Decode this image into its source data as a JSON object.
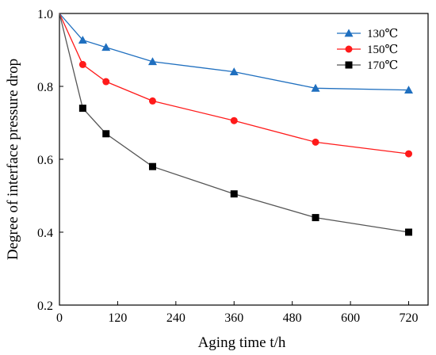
{
  "chart_data": {
    "type": "line",
    "xlabel": "Aging time t/h",
    "ylabel": "Degree of interface pressure drop",
    "xlim": [
      0,
      760
    ],
    "ylim": [
      0.2,
      1.0
    ],
    "xticks": [
      0,
      120,
      240,
      360,
      480,
      600,
      720
    ],
    "yticks": [
      0.2,
      0.4,
      0.6,
      0.8,
      1.0
    ],
    "xtick_labels": [
      "0",
      "120",
      "240",
      "360",
      "480",
      "600",
      "720"
    ],
    "ytick_labels": [
      "0.2",
      "0.4",
      "0.6",
      "0.8",
      "1.0"
    ],
    "legend_position": "top-right",
    "grid": false,
    "series": [
      {
        "name": "130℃",
        "color": "#1f6fbf",
        "marker": "triangle",
        "x": [
          0,
          48,
          96,
          192,
          360,
          528,
          720
        ],
        "y": [
          1.0,
          0.927,
          0.907,
          0.868,
          0.84,
          0.795,
          0.79
        ]
      },
      {
        "name": "150℃",
        "color": "#ff1a1a",
        "marker": "circle",
        "x": [
          0,
          48,
          96,
          192,
          360,
          528,
          720
        ],
        "y": [
          1.0,
          0.86,
          0.813,
          0.76,
          0.706,
          0.647,
          0.615
        ]
      },
      {
        "name": "170℃",
        "color": "#555555",
        "marker": "square",
        "x": [
          0,
          48,
          96,
          192,
          360,
          528,
          720
        ],
        "y": [
          1.0,
          0.74,
          0.67,
          0.58,
          0.505,
          0.44,
          0.4
        ]
      }
    ]
  }
}
